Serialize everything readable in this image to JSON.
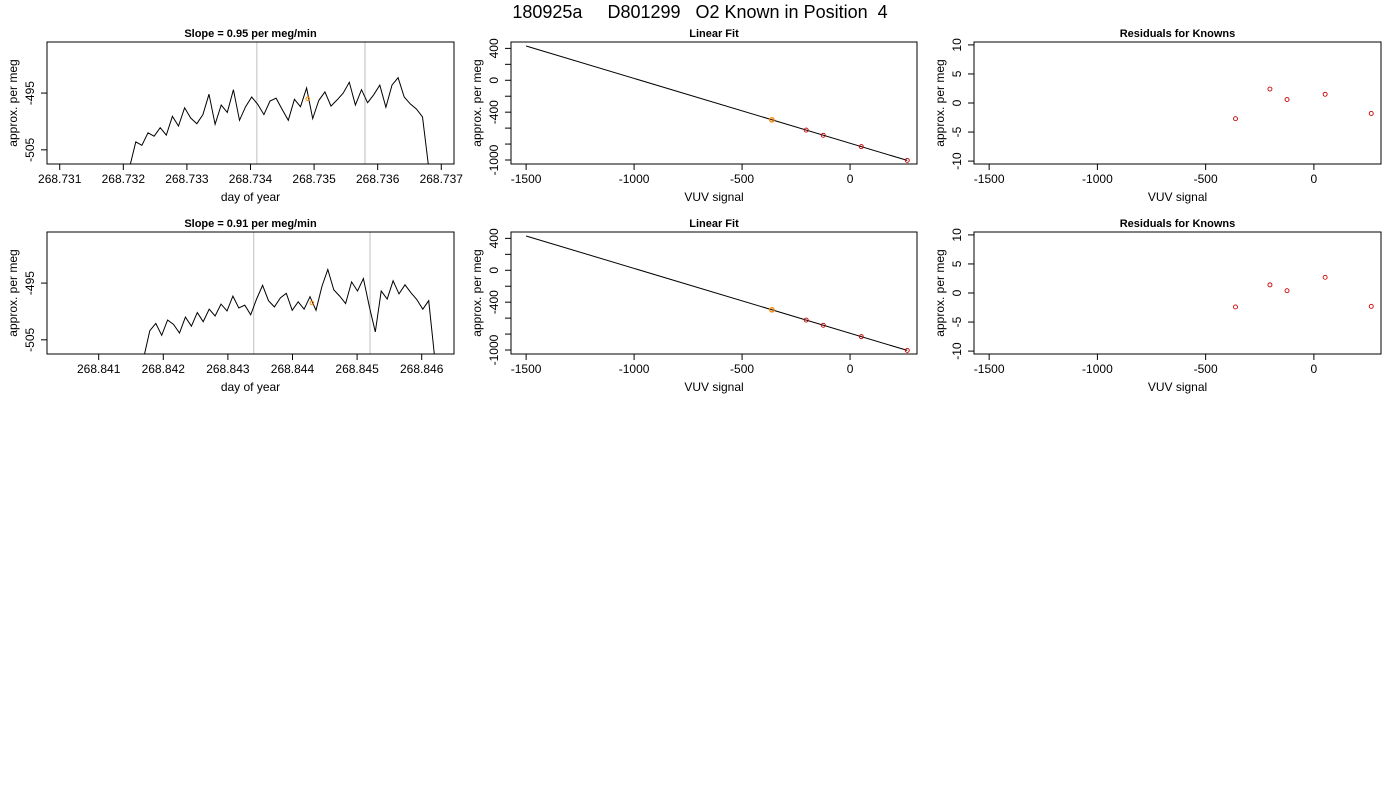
{
  "page_title": "180925a     D801299   O2 Known in Position  4",
  "chart_data": [
    {
      "type": "line",
      "title": "Slope =  0.95  per meg/min",
      "xlabel": "day of year",
      "ylabel": "approx. per meg",
      "xlim": [
        268.7308,
        268.7372
      ],
      "ylim": [
        -507.5,
        -486.0
      ],
      "x_ticks": [
        "268.731",
        "268.732",
        "268.733",
        "268.734",
        "268.735",
        "268.736",
        "268.737"
      ],
      "y_ticks": [
        "-495",
        "-505"
      ],
      "vlines": [
        268.7341,
        268.7358
      ],
      "marker": {
        "x": 268.7349,
        "y": -496.0,
        "color": "#FF8C00"
      },
      "series": [
        {
          "x_start": 268.7321,
          "x_end": 268.7368,
          "values": [
            -508.0,
            -503.6,
            -504.2,
            -502.0,
            -502.6,
            -501.1,
            -502.4,
            -499.1,
            -500.8,
            -497.6,
            -499.4,
            -500.4,
            -498.8,
            -495.2,
            -500.5,
            -497.1,
            -498.4,
            -494.4,
            -499.8,
            -497.4,
            -495.7,
            -497.0,
            -498.8,
            -496.4,
            -495.9,
            -497.9,
            -499.8,
            -496.1,
            -497.4,
            -494.1,
            -499.5,
            -496.3,
            -494.8,
            -497.3,
            -496.2,
            -495.0,
            -493.1,
            -497.1,
            -494.4,
            -496.7,
            -495.3,
            -493.6,
            -497.5,
            -493.6,
            -492.3,
            -495.7,
            -496.9,
            -497.8,
            -499.2,
            -508.0
          ]
        }
      ]
    },
    {
      "type": "scatter",
      "title": "Linear Fit",
      "xlabel": "VUV signal",
      "ylabel": "approx. per meg",
      "xlim": [
        -1570,
        310
      ],
      "ylim": [
        -1050,
        480
      ],
      "x_ticks": [
        "-1500",
        "-1000",
        "-500",
        "0"
      ],
      "y_ticks": [
        "-1000",
        "-800",
        "-600",
        "-400",
        "-200",
        "0",
        "200",
        "400"
      ],
      "y_tick_labels": [
        "-1000",
        "-400",
        "0",
        "400"
      ],
      "fit_line": {
        "x": [
          -1500,
          265
        ],
        "y": [
          430,
          -1005
        ]
      },
      "points": {
        "x": [
          -362,
          -203,
          -124,
          52,
          265
        ],
        "y": [
          -496,
          -625,
          -690,
          -832,
          -1005
        ]
      },
      "highlight_point": {
        "x": -362,
        "y": -496,
        "color": "#FF8C00"
      }
    },
    {
      "type": "scatter",
      "title": "Residuals for Knowns",
      "xlabel": "VUV signal",
      "ylabel": "approx. per meg",
      "xlim": [
        -1570,
        310
      ],
      "ylim": [
        -10.5,
        10.5
      ],
      "x_ticks": [
        "-1500",
        "-1000",
        "-500",
        "0"
      ],
      "y_ticks": [
        "-10",
        "-5",
        "0",
        "5",
        "10"
      ],
      "points": {
        "x": [
          -362,
          -203,
          -124,
          52,
          265
        ],
        "y": [
          -2.7,
          2.4,
          0.6,
          1.5,
          -1.8
        ]
      }
    },
    {
      "type": "line",
      "title": "Slope =  0.91  per meg/min",
      "xlabel": "day of year",
      "ylabel": "approx. per meg",
      "xlim": [
        268.8402,
        268.8465
      ],
      "ylim": [
        -507.5,
        -486.0
      ],
      "x_ticks": [
        "268.841",
        "268.842",
        "268.843",
        "268.844",
        "268.845",
        "268.846"
      ],
      "y_ticks": [
        "-495",
        "-505"
      ],
      "vlines": [
        268.8434,
        268.8452
      ],
      "marker": {
        "x": 268.8443,
        "y": -498.5,
        "color": "#FF8C00"
      },
      "series": [
        {
          "x_start": 268.8417,
          "x_end": 268.8462,
          "values": [
            -508.0,
            -503.4,
            -502.1,
            -504.2,
            -501.5,
            -502.3,
            -503.8,
            -501.0,
            -502.6,
            -500.2,
            -501.8,
            -499.6,
            -500.8,
            -498.7,
            -499.9,
            -497.3,
            -499.4,
            -498.9,
            -500.6,
            -497.8,
            -495.4,
            -498.1,
            -499.2,
            -497.6,
            -496.8,
            -499.8,
            -498.3,
            -499.6,
            -497.4,
            -499.8,
            -495.6,
            -492.6,
            -496.2,
            -497.3,
            -498.6,
            -494.8,
            -496.4,
            -494.2,
            -499.2,
            -503.6,
            -496.4,
            -497.8,
            -494.6,
            -496.9,
            -495.3,
            -496.7,
            -497.9,
            -499.6,
            -498.1,
            -508.0
          ]
        }
      ]
    },
    {
      "type": "scatter",
      "title": "Linear Fit",
      "xlabel": "VUV signal",
      "ylabel": "approx. per meg",
      "xlim": [
        -1570,
        310
      ],
      "ylim": [
        -1050,
        480
      ],
      "x_ticks": [
        "-1500",
        "-1000",
        "-500",
        "0"
      ],
      "y_ticks": [
        "-1000",
        "-800",
        "-600",
        "-400",
        "-200",
        "0",
        "200",
        "400"
      ],
      "y_tick_labels": [
        "-1000",
        "-400",
        "0",
        "400"
      ],
      "fit_line": {
        "x": [
          -1500,
          265
        ],
        "y": [
          430,
          -1005
        ]
      },
      "points": {
        "x": [
          -362,
          -203,
          -124,
          52,
          265
        ],
        "y": [
          -496,
          -625,
          -690,
          -832,
          -1005
        ]
      },
      "highlight_point": {
        "x": -362,
        "y": -496,
        "color": "#FF8C00"
      }
    },
    {
      "type": "scatter",
      "title": "Residuals for Knowns",
      "xlabel": "VUV signal",
      "ylabel": "approx. per meg",
      "xlim": [
        -1570,
        310
      ],
      "ylim": [
        -10.5,
        10.5
      ],
      "x_ticks": [
        "-1500",
        "-1000",
        "-500",
        "0"
      ],
      "y_ticks": [
        "-10",
        "-5",
        "0",
        "5",
        "10"
      ],
      "points": {
        "x": [
          -362,
          -203,
          -124,
          52,
          265
        ],
        "y": [
          -2.4,
          1.4,
          0.4,
          2.7,
          -2.3
        ]
      }
    }
  ],
  "colors": {
    "line": "#000000",
    "point": "#CC0000",
    "highlight": "#FF8C00",
    "vline": "#BEBEBE"
  }
}
